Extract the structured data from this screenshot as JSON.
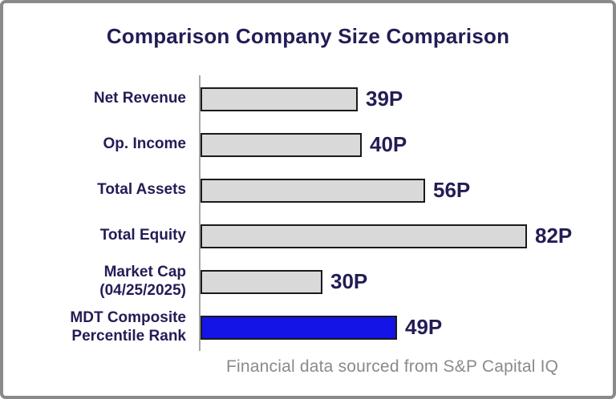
{
  "frame": {
    "border_color": "#8a8a8a",
    "background_color": "#ffffff"
  },
  "chart_data": {
    "type": "bar",
    "orientation": "horizontal",
    "title": "Comparison Company Size Comparison",
    "title_color": "#221d55",
    "categories": [
      "Net Revenue",
      "Op. Income",
      "Total Assets",
      "Total Equity",
      "Market Cap\n(04/25/2025)",
      "MDT Composite\nPercentile Rank"
    ],
    "values": [
      39,
      40,
      56,
      82,
      30,
      49
    ],
    "value_labels": [
      "39P",
      "40P",
      "56P",
      "82P",
      "30P",
      "49P"
    ],
    "value_suffix": "P",
    "xlim": [
      0,
      100
    ],
    "grid": false,
    "legend": "none",
    "bar_colors": [
      "#d9d9d9",
      "#d9d9d9",
      "#d9d9d9",
      "#d9d9d9",
      "#d9d9d9",
      "#1414e6"
    ],
    "bar_outline_color": "#1a1a1a",
    "highlight_color": "#1414e6",
    "default_bar_color": "#d9d9d9",
    "axis_line_color": "#a6a6a6",
    "label_color": "#221d55"
  },
  "footer": {
    "text": "Financial data sourced from S&P Capital IQ",
    "color": "#8a8a8a"
  }
}
